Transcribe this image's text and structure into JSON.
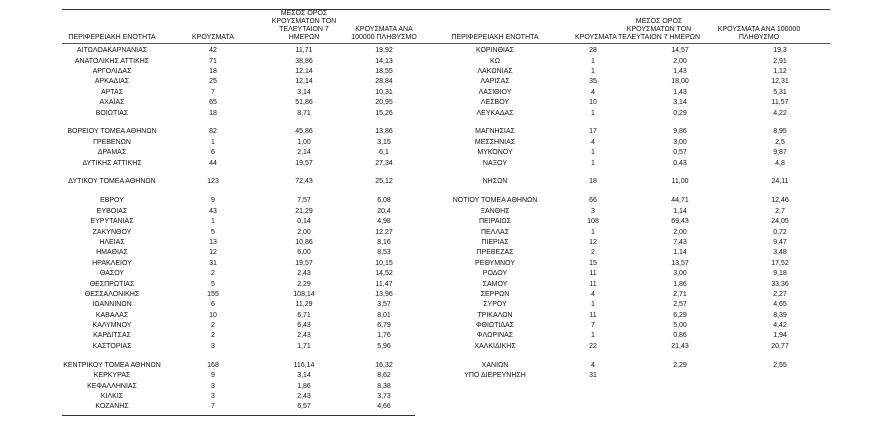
{
  "tables": [
    {
      "headers": [
        "ΠΕΡΙΦΕΡΕΙΑΚΗ ΕΝΟΤΗΤΑ",
        "ΚΡΟΥΣΜΑΤΑ",
        "ΜΕΣΟΣ ΟΡΟΣ ΚΡΟΥΣΜΑΤΩΝ ΤΟΝ ΤΕΛΕΥΤΑΙΟΝ 7 ΗΜΕΡΩΝ",
        "ΚΡΟΥΣΜΑΤΑ ΑΝΑ 100000 ΠΛΗΘΥΣΜΟ"
      ],
      "groups": [
        [
          [
            "ΑΙΤΩΛΟΑΚΑΡΝΑΝΙΑΣ",
            "42",
            "11,71",
            "19,92"
          ],
          [
            "ΑΝΑΤΟΛΙΚΗΣ ΑΤΤΙΚΗΣ",
            "71",
            "38,86",
            "14,13"
          ],
          [
            "ΑΡΓΟΛΙΔΑΣ",
            "18",
            "12,14",
            "18,55"
          ],
          [
            "ΑΡΚΑΔΙΑΣ",
            "25",
            "12,14",
            "28,84"
          ],
          [
            "ΑΡΤΑΣ",
            "7",
            "3,14",
            "10,31"
          ],
          [
            "ΑΧΑΪΑΣ",
            "65",
            "51,86",
            "20,95"
          ],
          [
            "ΒΟΙΩΤΙΑΣ",
            "18",
            "8,71",
            "15,26"
          ]
        ],
        [
          [
            "ΒΟΡΕΙΟΥ ΤΟΜΕΑ ΑΘΗΝΩΝ",
            "82",
            "45,86",
            "13,86"
          ],
          [
            "ΓΡΕΒΕΝΩΝ",
            "1",
            "1,00",
            "3,15"
          ],
          [
            "ΔΡΑΜΑΣ",
            "6",
            "2,14",
            "6,1"
          ],
          [
            "ΔΥΤΙΚΗΣ ΑΤΤΙΚΗΣ",
            "44",
            "19,57",
            "27,34"
          ]
        ],
        [
          [
            "ΔΥΤΙΚΟΥ ΤΟΜΕΑ ΑΘΗΝΩΝ",
            "123",
            "72,43",
            "25,12"
          ]
        ],
        [
          [
            "ΕΒΡΟΥ",
            "9",
            "7,57",
            "6,08"
          ],
          [
            "ΕΥΒΟΙΑΣ",
            "43",
            "21,29",
            "20,4"
          ],
          [
            "ΕΥΡΥΤΑΝΙΑΣ",
            "1",
            "0,14",
            "4,98"
          ],
          [
            "ΖΑΚΥΝΘΟΥ",
            "5",
            "2,00",
            "12,27"
          ],
          [
            "ΗΛΕΙΑΣ",
            "13",
            "10,86",
            "8,16"
          ],
          [
            "ΗΜΑΘΙΑΣ",
            "12",
            "6,00",
            "8,53"
          ],
          [
            "ΗΡΑΚΛΕΙΟΥ",
            "31",
            "19,57",
            "10,15"
          ],
          [
            "ΘΑΣΟΥ",
            "2",
            "2,43",
            "14,52"
          ],
          [
            "ΘΕΣΠΡΩΤΙΑΣ",
            "5",
            "2,29",
            "11,47"
          ],
          [
            "ΘΕΣΣΑΛΟΝΙΚΗΣ",
            "155",
            "108,14",
            "13,96"
          ],
          [
            "ΙΩΑΝΝΙΝΩΝ",
            "6",
            "11,29",
            "3,57"
          ],
          [
            "ΚΑΒΑΛΑΣ",
            "10",
            "6,71",
            "8,01"
          ],
          [
            "ΚΑΛΥΜΝΟΥ",
            "2",
            "6,43",
            "6,79"
          ],
          [
            "ΚΑΡΔΙΤΣΑΣ",
            "2",
            "2,43",
            "1,76"
          ],
          [
            "ΚΑΣΤΟΡΙΑΣ",
            "3",
            "1,71",
            "5,96"
          ]
        ],
        [
          [
            "ΚΕΝΤΡΙΚΟΥ ΤΟΜΕΑ ΑΘΗΝΩΝ",
            "168",
            "116,14",
            "16,32"
          ],
          [
            "ΚΕΡΚΥΡΑΣ",
            "9",
            "3,14",
            "8,62"
          ],
          [
            "ΚΕΦΑΛΛΗΝΙΑΣ",
            "3",
            "1,86",
            "8,38"
          ],
          [
            "ΚΙΛΚΙΣ",
            "3",
            "2,43",
            "3,73"
          ],
          [
            "ΚΟΖΑΝΗΣ",
            "7",
            "6,57",
            "4,66"
          ]
        ]
      ]
    },
    {
      "headers": [
        "ΠΕΡΙΦΕΡΕΙΑΚΗ ΕΝΟΤΗΤΑ",
        "ΚΡΟΥΣΜΑΤΑ",
        "ΜΕΣΟΣ ΟΡΟΣ ΚΡΟΥΣΜΑΤΩΝ ΤΟΝ ΤΕΛΕΥΤΑΙΟΝ 7 ΗΜΕΡΩΝ",
        "ΚΡΟΥΣΜΑΤΑ ΑΝΑ 100000 ΠΛΗΘΥΣΜΟ"
      ],
      "groups": [
        [
          [
            "ΚΟΡΙΝΘΙΑΣ",
            "28",
            "14,57",
            "19,3"
          ],
          [
            "ΚΩ",
            "1",
            "2,00",
            "2,91"
          ],
          [
            "ΛΑΚΩΝΙΑΣ",
            "1",
            "1,43",
            "1,12"
          ],
          [
            "ΛΑΡΙΣΑΣ",
            "35",
            "18,00",
            "12,31"
          ],
          [
            "ΛΑΣΙΘΙΟΥ",
            "4",
            "1,43",
            "5,31"
          ],
          [
            "ΛΕΣΒΟΥ",
            "10",
            "3,14",
            "11,57"
          ],
          [
            "ΛΕΥΚΑΔΑΣ",
            "1",
            "0,29",
            "4,22"
          ]
        ],
        [
          [
            "ΜΑΓΝΗΣΙΑΣ",
            "17",
            "9,86",
            "8,95"
          ],
          [
            "ΜΕΣΣΗΝΙΑΣ",
            "4",
            "3,00",
            "2,5"
          ],
          [
            "ΜΥΚΟΝΟΥ",
            "1",
            "0,57",
            "9,87"
          ],
          [
            "ΝΑΞΟΥ",
            "1",
            "0,43",
            "4,8"
          ]
        ],
        [
          [
            "ΝΗΣΩΝ",
            "18",
            "11,00",
            "24,11"
          ]
        ],
        [
          [
            "ΝΟΤΙΟΥ ΤΟΜΕΑ ΑΘΗΝΩΝ",
            "66",
            "44,71",
            "12,46"
          ],
          [
            "ΞΑΝΘΗΣ",
            "3",
            "1,14",
            "2,7"
          ],
          [
            "ΠΕΙΡΑΙΩΣ",
            "108",
            "69,43",
            "24,05"
          ],
          [
            "ΠΕΛΛΑΣ",
            "1",
            "2,00",
            "0,72"
          ],
          [
            "ΠΙΕΡΙΑΣ",
            "12",
            "7,43",
            "9,47"
          ],
          [
            "ΠΡΕΒΕΖΑΣ",
            "2",
            "1,14",
            "3,48"
          ],
          [
            "ΡΕΘΥΜΝΟΥ",
            "15",
            "13,57",
            "17,52"
          ],
          [
            "ΡΟΔΟΥ",
            "11",
            "3,00",
            "9,18"
          ],
          [
            "ΣΑΜΟΥ",
            "11",
            "1,86",
            "33,36"
          ],
          [
            "ΣΕΡΡΩΝ",
            "4",
            "2,71",
            "2,27"
          ],
          [
            "ΣΥΡΟΥ",
            "1",
            "2,57",
            "4,65"
          ],
          [
            "ΤΡΙΚΑΛΩΝ",
            "11",
            "6,29",
            "8,39"
          ],
          [
            "ΦΘΙΩΤΙΔΑΣ",
            "7",
            "5,00",
            "4,42"
          ],
          [
            "ΦΛΩΡΙΝΑΣ",
            "1",
            "0,86",
            "1,94"
          ],
          [
            "ΧΑΛΚΙΔΙΚΗΣ",
            "22",
            "21,43",
            "20,77"
          ]
        ],
        [
          [
            "ΧΑΝΙΩΝ",
            "4",
            "2,29",
            "2,55"
          ],
          [
            "ΥΠΟ ΔΙΕΡΕΥΝΗΣΗ",
            "31"
          ]
        ]
      ]
    }
  ]
}
